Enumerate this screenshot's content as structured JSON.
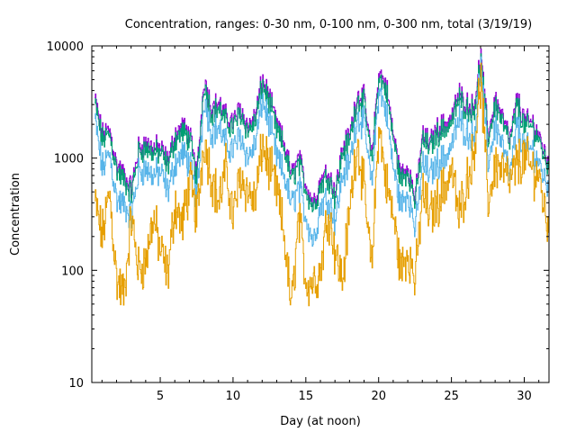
{
  "chart_data": {
    "type": "line",
    "title": "Concentration, ranges: 0-30 nm, 0-100 nm, 0-300 nm, total (3/19/19)",
    "xlabel": "Day (at noon)",
    "ylabel": "Concentration",
    "xlim": [
      0.3,
      31.7
    ],
    "ylim": [
      10,
      10000
    ],
    "yscale": "log",
    "x_ticks": [
      5,
      10,
      15,
      20,
      25,
      30
    ],
    "x_tick_labels": [
      "5",
      "10",
      "15",
      "20",
      "25",
      "30"
    ],
    "y_ticks": [
      10,
      100,
      1000,
      10000
    ],
    "y_tick_labels": [
      "10",
      "100",
      "1000",
      "10000"
    ],
    "grid": false,
    "legend": "none",
    "x": [
      0.5,
      1.0,
      1.5,
      2.0,
      2.5,
      3.0,
      3.5,
      4.0,
      4.5,
      5.0,
      5.5,
      6.0,
      6.5,
      7.0,
      7.5,
      8.0,
      8.5,
      9.0,
      9.5,
      10.0,
      10.5,
      11.0,
      11.5,
      12.0,
      12.5,
      13.0,
      13.5,
      14.0,
      14.5,
      15.0,
      15.5,
      16.0,
      16.5,
      17.0,
      17.5,
      18.0,
      18.5,
      19.0,
      19.5,
      20.0,
      20.5,
      21.0,
      21.5,
      22.0,
      22.5,
      23.0,
      23.5,
      24.0,
      24.5,
      25.0,
      25.5,
      26.0,
      26.5,
      27.0,
      27.5,
      28.0,
      28.5,
      29.0,
      29.5,
      30.0,
      30.5,
      31.0,
      31.5
    ],
    "series": [
      {
        "name": "total",
        "color": "#9400d3",
        "values": [
          3370,
          1600,
          1800,
          850,
          700,
          530,
          1230,
          1350,
          1230,
          1230,
          930,
          1600,
          1900,
          1600,
          700,
          5300,
          2800,
          3100,
          2300,
          2100,
          2800,
          1900,
          2300,
          5000,
          3370,
          1900,
          1350,
          700,
          1000,
          580,
          400,
          630,
          770,
          500,
          1230,
          1600,
          3700,
          3370,
          1000,
          5860,
          4440,
          1600,
          700,
          850,
          440,
          1600,
          1350,
          1800,
          2000,
          2300,
          3700,
          3100,
          2800,
          8000,
          1600,
          3370,
          2300,
          1450,
          3370,
          2100,
          2100,
          1600,
          1000
        ]
      },
      {
        "name": "0-300 nm",
        "color": "#009e73",
        "values": [
          3050,
          1450,
          1630,
          770,
          630,
          480,
          1110,
          1220,
          1110,
          1110,
          840,
          1450,
          1720,
          1450,
          630,
          4800,
          2530,
          2800,
          2080,
          1900,
          2530,
          1720,
          2080,
          4520,
          3050,
          1720,
          1220,
          630,
          900,
          520,
          360,
          570,
          700,
          450,
          1110,
          1450,
          3350,
          3050,
          900,
          5300,
          4020,
          1450,
          630,
          770,
          400,
          1450,
          1220,
          1630,
          1810,
          2080,
          3350,
          2800,
          2530,
          7240,
          1450,
          3050,
          2080,
          1310,
          3050,
          1900,
          1900,
          1450,
          900
        ]
      },
      {
        "name": "0-100 nm",
        "color": "#56b4e9",
        "values": [
          2200,
          800,
          1100,
          420,
          380,
          300,
          750,
          800,
          700,
          750,
          500,
          900,
          1100,
          900,
          420,
          3600,
          1700,
          1900,
          1300,
          1200,
          1600,
          1000,
          1300,
          3300,
          2000,
          1000,
          700,
          380,
          550,
          300,
          180,
          380,
          450,
          280,
          700,
          900,
          2400,
          2000,
          550,
          4200,
          2600,
          800,
          380,
          500,
          230,
          900,
          700,
          900,
          1000,
          1300,
          2200,
          1700,
          1500,
          6500,
          900,
          2000,
          1300,
          700,
          2000,
          1200,
          1200,
          900,
          600
        ]
      },
      {
        "name": "0-30 nm",
        "color": "#e69f00",
        "values": [
          400,
          200,
          500,
          80,
          60,
          300,
          100,
          120,
          300,
          150,
          90,
          400,
          250,
          600,
          300,
          1500,
          700,
          400,
          800,
          300,
          700,
          500,
          400,
          1300,
          800,
          500,
          200,
          45,
          300,
          80,
          80,
          100,
          350,
          150,
          80,
          350,
          1500,
          500,
          100,
          2000,
          600,
          300,
          100,
          150,
          80,
          500,
          300,
          400,
          550,
          800,
          300,
          600,
          1100,
          5000,
          400,
          900,
          800,
          600,
          900,
          1000,
          800,
          700,
          280
        ]
      }
    ]
  }
}
